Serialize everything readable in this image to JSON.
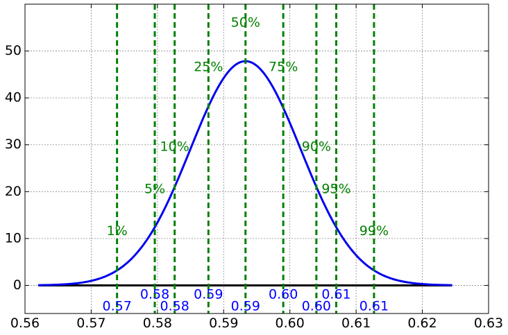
{
  "chart_data": {
    "type": "line",
    "title": "",
    "xlabel": "",
    "ylabel": "",
    "xlim": [
      0.56,
      0.63
    ],
    "ylim": [
      -6,
      60
    ],
    "grid": true,
    "x_ticks": [
      "0.56",
      "0.57",
      "0.58",
      "0.59",
      "0.60",
      "0.61",
      "0.62",
      "0.63"
    ],
    "y_ticks": [
      "0",
      "10",
      "20",
      "30",
      "40",
      "50"
    ],
    "x_tick_values": [
      0.56,
      0.57,
      0.58,
      0.59,
      0.6,
      0.61,
      0.62,
      0.63
    ],
    "y_tick_values": [
      0,
      10,
      20,
      30,
      40,
      50
    ],
    "curve": {
      "color": "#0000ee",
      "distribution": "normal",
      "mean": 0.5933,
      "sd": 0.00834,
      "x_range": [
        0.562,
        0.6245
      ]
    },
    "baseline": {
      "y": 0,
      "x_range": [
        0.562,
        0.6245
      ],
      "color": "#000000"
    },
    "percentile_color": "#008000",
    "value_color": "#0000ff",
    "percentiles": [
      {
        "label": "1%",
        "x": 0.5739,
        "label_y": 11.5,
        "value_label": "0.57",
        "value_y": -4.5
      },
      {
        "label": "5%",
        "x": 0.5796,
        "label_y": 20.5,
        "value_label": "0.58",
        "value_y": -2.0
      },
      {
        "label": "10%",
        "x": 0.5826,
        "label_y": 29.5,
        "value_label": "0.58",
        "value_y": -4.5
      },
      {
        "label": "25%",
        "x": 0.5877,
        "label_y": 46.5,
        "value_label": "0.59",
        "value_y": -2.0
      },
      {
        "label": "50%",
        "x": 0.5933,
        "label_y": 56.0,
        "value_label": "0.59",
        "value_y": -4.5
      },
      {
        "label": "75%",
        "x": 0.599,
        "label_y": 46.5,
        "value_label": "0.60",
        "value_y": -2.0
      },
      {
        "label": "90%",
        "x": 0.604,
        "label_y": 29.5,
        "value_label": "0.60",
        "value_y": -4.5
      },
      {
        "label": "95%",
        "x": 0.607,
        "label_y": 20.5,
        "value_label": "0.61",
        "value_y": -2.0
      },
      {
        "label": "99%",
        "x": 0.6127,
        "label_y": 11.5,
        "value_label": "0.61",
        "value_y": -4.5
      }
    ]
  }
}
